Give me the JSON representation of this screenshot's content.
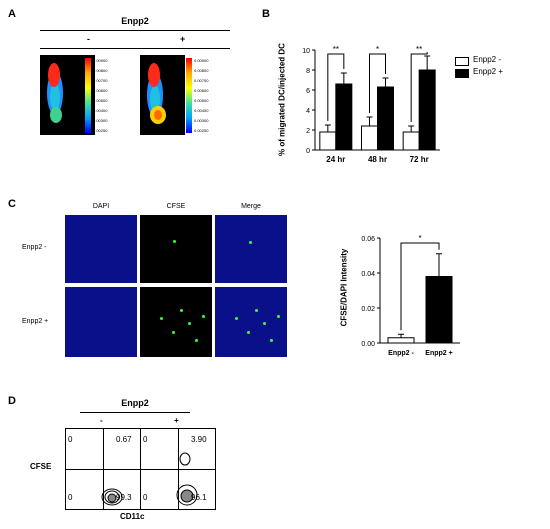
{
  "panel_labels": {
    "a": "A",
    "b": "B",
    "c": "C",
    "d": "D"
  },
  "panel_a": {
    "group_title": "Enpp2",
    "minus": "-",
    "plus": "+",
    "colorbar_ticks": [
      "0.00900",
      "0.00800",
      "0.00700",
      "0.00600",
      "0.00500",
      "0.00400",
      "0.00300",
      "0.00250"
    ]
  },
  "panel_c": {
    "col_headers": [
      "DAPI",
      "CFSE",
      "Merge"
    ],
    "row_labels": [
      "Enpp2 -",
      "Enpp2 +"
    ],
    "significance": "*"
  },
  "panel_d": {
    "group_title": "Enpp2",
    "minus": "-",
    "plus": "+",
    "ylabel": "CFSE",
    "xlabel": "CD11c",
    "minus_plot": {
      "q_ul": "0",
      "q_ur": "0.67",
      "q_ll": "0",
      "q_lr": "99.3"
    },
    "plus_plot": {
      "q_ul": "0",
      "q_ur": "3.90",
      "q_ll": "0",
      "q_lr": "96.1"
    }
  },
  "chart_data": [
    {
      "type": "bar",
      "categories": [
        "24 hr",
        "48 hr",
        "72 hr"
      ],
      "series": [
        {
          "name": "Enpp2 -",
          "values": [
            1.8,
            2.4,
            1.8
          ],
          "errors": [
            0.7,
            0.9,
            0.6
          ],
          "color": "#ffffff"
        },
        {
          "name": "Enpp2 +",
          "values": [
            6.6,
            6.3,
            8.0
          ],
          "errors": [
            1.1,
            0.9,
            1.4
          ],
          "color": "#000000"
        }
      ],
      "significance": [
        "**",
        "*",
        "**"
      ],
      "ylabel": "% of migrated DC/injected DC",
      "ylim": [
        0,
        10
      ],
      "yticks": [
        "0",
        "2",
        "4",
        "6",
        "8",
        "10"
      ],
      "legend": "top-right"
    },
    {
      "type": "bar",
      "categories": [
        "Enpp2 -",
        "Enpp2 +"
      ],
      "values": [
        0.003,
        0.038
      ],
      "errors": [
        0.002,
        0.013
      ],
      "colors": [
        "#ffffff",
        "#000000"
      ],
      "ylabel": "CFSE/DAPI Intensity",
      "ylim": [
        0,
        0.06
      ],
      "yticks": [
        "0.00",
        "0.02",
        "0.04",
        "0.06"
      ]
    }
  ]
}
